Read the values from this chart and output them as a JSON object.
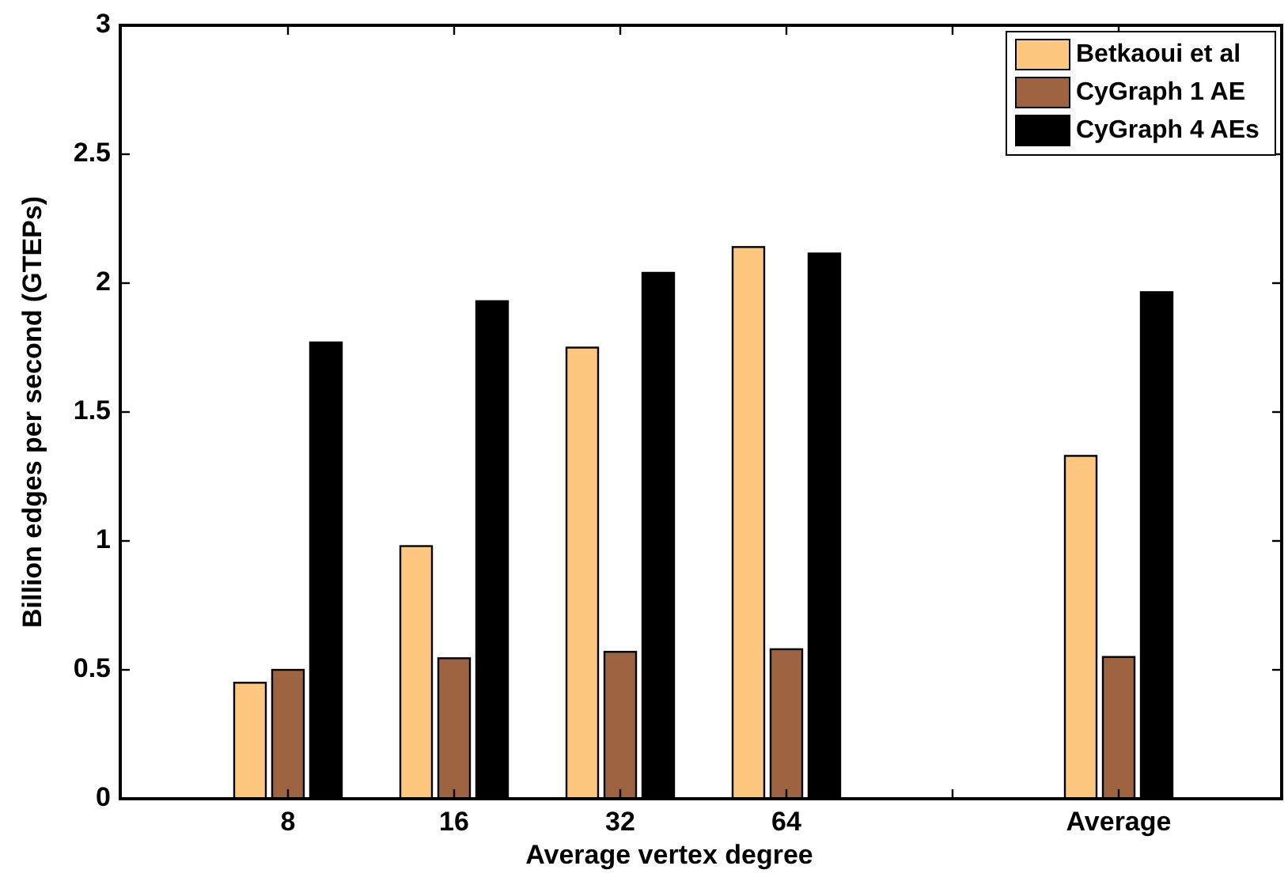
{
  "chart_data": {
    "type": "bar",
    "xlabel": "Average vertex degree",
    "ylabel": "Billion edges per second (GTEPs)",
    "categories": [
      "8",
      "16",
      "32",
      "64",
      null,
      "Average"
    ],
    "series": [
      {
        "name": "Betkaoui et al",
        "color": "#fec77f",
        "values": [
          0.45,
          0.98,
          1.75,
          2.14,
          0,
          1.33
        ]
      },
      {
        "name": "CyGraph 1 AE",
        "color": "#9e6340",
        "values": [
          0.5,
          0.545,
          0.57,
          0.58,
          0,
          0.55
        ]
      },
      {
        "name": "CyGraph 4 AEs",
        "color": "#000000",
        "values": [
          1.77,
          1.93,
          2.04,
          2.115,
          0,
          1.965
        ]
      }
    ],
    "ylim": [
      0,
      3
    ],
    "yticks": [
      0,
      0.5,
      1,
      1.5,
      2,
      2.5,
      3
    ],
    "legend": "top right",
    "grid": false
  }
}
